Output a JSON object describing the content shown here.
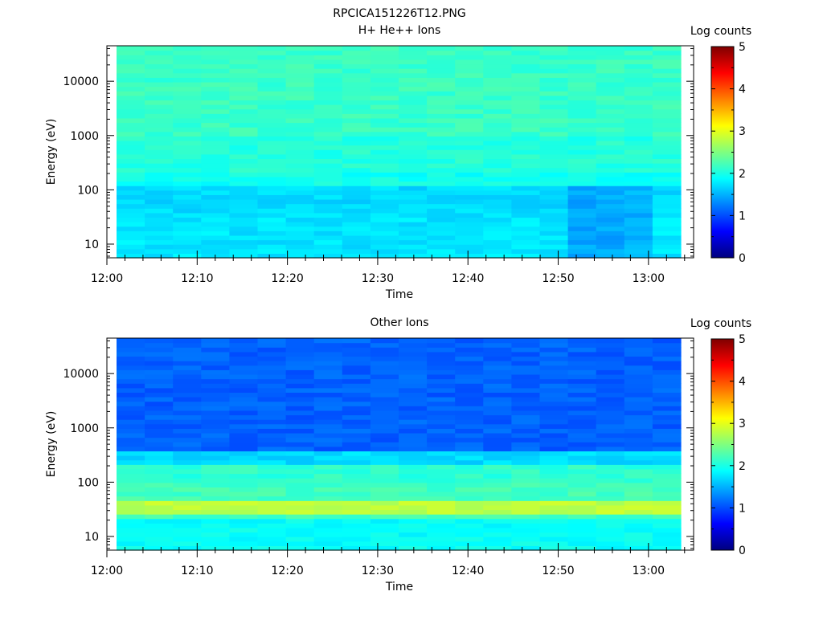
{
  "figure_title": "RPCICA151226T12.PNG",
  "colorbar_label": "Log counts",
  "colorbar_ticks": [
    "0",
    "1",
    "2",
    "3",
    "4",
    "5"
  ],
  "colorscale": [
    "#00007f",
    "#0000ff",
    "#007fff",
    "#00ffff",
    "#7fff7f",
    "#ffff00",
    "#ff7f00",
    "#ff0000",
    "#7f0000"
  ],
  "chart_data": [
    {
      "type": "heatmap",
      "title": "H+ He++ Ions",
      "xlabel": "Time",
      "ylabel": "Energy (eV)",
      "x_tick_labels": [
        "12:00",
        "12:10",
        "12:20",
        "12:30",
        "12:40",
        "12:50",
        "13:00"
      ],
      "y_tick_labels": [
        "10",
        "100",
        "1000",
        "10000"
      ],
      "y_scale": "log",
      "color_range": [
        0,
        5
      ],
      "time_columns": [
        "12:01",
        "12:04",
        "12:07",
        "12:10",
        "12:14",
        "12:17",
        "12:20",
        "12:23",
        "12:27",
        "12:30",
        "12:33",
        "12:36",
        "12:39",
        "12:43",
        "12:46",
        "12:49",
        "12:52",
        "12:55",
        "12:59",
        "13:02"
      ],
      "energy_bands_eV": [
        {
          "range": [
            5,
            30
          ],
          "value": 1.75
        },
        {
          "range": [
            30,
            120
          ],
          "value": 1.7
        },
        {
          "range": [
            120,
            200
          ],
          "value": 1.95
        },
        {
          "range": [
            200,
            1000
          ],
          "value": 2.05
        },
        {
          "range": [
            1000,
            45000
          ],
          "value": 2.15
        }
      ],
      "enhanced_cells": [
        {
          "time": "12:52",
          "energy_range": [
            5,
            120
          ],
          "value": 1.45
        },
        {
          "time": "12:55",
          "energy_range": [
            5,
            120
          ],
          "value": 1.45
        },
        {
          "time": "12:59",
          "energy_range": [
            5,
            120
          ],
          "value": 1.5
        }
      ]
    },
    {
      "type": "heatmap",
      "title": "Other Ions",
      "xlabel": "Time",
      "ylabel": "Energy (eV)",
      "x_tick_labels": [
        "12:00",
        "12:10",
        "12:20",
        "12:30",
        "12:40",
        "12:50",
        "13:00"
      ],
      "y_tick_labels": [
        "10",
        "100",
        "1000",
        "10000"
      ],
      "y_scale": "log",
      "color_range": [
        0,
        5
      ],
      "time_columns": [
        "12:01",
        "12:04",
        "12:07",
        "12:10",
        "12:14",
        "12:17",
        "12:20",
        "12:23",
        "12:27",
        "12:30",
        "12:33",
        "12:36",
        "12:39",
        "12:43",
        "12:46",
        "12:49",
        "12:52",
        "12:55",
        "12:59",
        "13:02"
      ],
      "energy_bands_eV": [
        {
          "range": [
            5,
            22
          ],
          "value": 1.9
        },
        {
          "range": [
            22,
            27
          ],
          "value": 2.2
        },
        {
          "range": [
            27,
            42
          ],
          "value": 2.8
        },
        {
          "range": [
            42,
            100
          ],
          "value": 2.2
        },
        {
          "range": [
            100,
            200
          ],
          "value": 2.1
        },
        {
          "range": [
            200,
            350
          ],
          "value": 1.7
        },
        {
          "range": [
            350,
            45000
          ],
          "value": 1.1
        }
      ]
    }
  ]
}
